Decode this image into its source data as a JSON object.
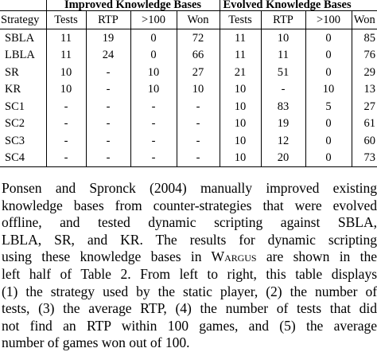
{
  "table": {
    "group_headers": {
      "improved": "Improved Knowledge Bases",
      "evolved": "Evolved Knowledge Bases"
    },
    "columns": {
      "strategy": "Strategy",
      "tests": "Tests",
      "rtp": "RTP",
      "gt100": ">100",
      "won": "Won"
    },
    "rows": [
      {
        "strategy": "SBLA",
        "imp_tests": "11",
        "imp_rtp": "19",
        "imp_gt100": "0",
        "imp_won": "72",
        "evo_tests": "11",
        "evo_rtp": "10",
        "evo_gt100": "0",
        "evo_won": "85"
      },
      {
        "strategy": "LBLA",
        "imp_tests": "11",
        "imp_rtp": "24",
        "imp_gt100": "0",
        "imp_won": "66",
        "evo_tests": "11",
        "evo_rtp": "11",
        "evo_gt100": "0",
        "evo_won": "76"
      },
      {
        "strategy": "SR",
        "imp_tests": "10",
        "imp_rtp": "-",
        "imp_gt100": "10",
        "imp_won": "27",
        "evo_tests": "21",
        "evo_rtp": "51",
        "evo_gt100": "0",
        "evo_won": "29"
      },
      {
        "strategy": "KR",
        "imp_tests": "10",
        "imp_rtp": "-",
        "imp_gt100": "10",
        "imp_won": "10",
        "evo_tests": "10",
        "evo_rtp": "-",
        "evo_gt100": "10",
        "evo_won": "13"
      },
      {
        "strategy": "SC1",
        "imp_tests": "-",
        "imp_rtp": "-",
        "imp_gt100": "-",
        "imp_won": "-",
        "evo_tests": "10",
        "evo_rtp": "83",
        "evo_gt100": "5",
        "evo_won": "27"
      },
      {
        "strategy": "SC2",
        "imp_tests": "-",
        "imp_rtp": "-",
        "imp_gt100": "-",
        "imp_won": "-",
        "evo_tests": "10",
        "evo_rtp": "19",
        "evo_gt100": "0",
        "evo_won": "61"
      },
      {
        "strategy": "SC3",
        "imp_tests": "-",
        "imp_rtp": "-",
        "imp_gt100": "-",
        "imp_won": "-",
        "evo_tests": "10",
        "evo_rtp": "12",
        "evo_gt100": "0",
        "evo_won": "60"
      },
      {
        "strategy": "SC4",
        "imp_tests": "-",
        "imp_rtp": "-",
        "imp_gt100": "-",
        "imp_won": "-",
        "evo_tests": "10",
        "evo_rtp": "20",
        "evo_gt100": "0",
        "evo_won": "73"
      }
    ]
  },
  "paragraph": {
    "line1": "Ponsen and Spronck (2004) manually improved existing",
    "line2": "knowledge bases from counter-strategies that were evolved",
    "line3": "offline, and tested dynamic scripting against SBLA,",
    "line4": "LBLA, SR, and KR. The results for dynamic scripting",
    "line5_pre": "using these knowledge bases in ",
    "line5_w": "W",
    "line5_argus": "argus",
    "line5_post": " are shown in the",
    "line6": "left half of Table 2. From left to right, this table displays",
    "line7": "(1) the strategy used by the static player, (2) the number of",
    "line8": "tests, (3) the average RTP, (4) the number of tests that did",
    "line9": "not find an RTP within 100 games, and (5) the average",
    "line10": "number of games won out of 100."
  }
}
